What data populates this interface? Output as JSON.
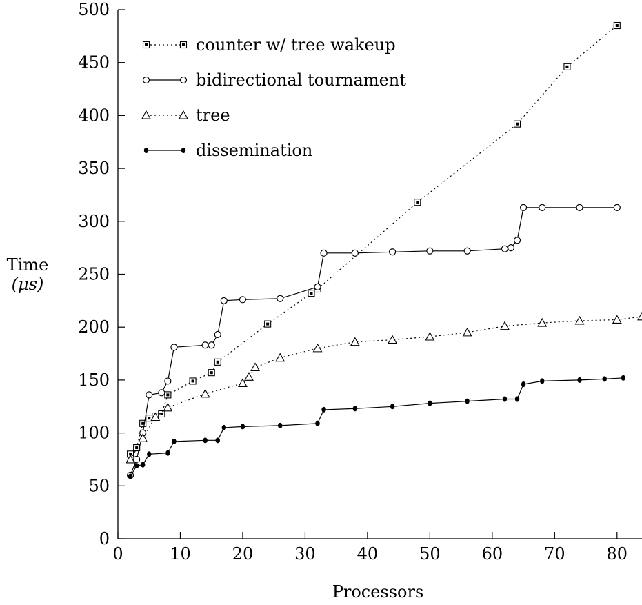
{
  "chart_data": {
    "type": "line",
    "title": "",
    "xlabel": "Processors",
    "ylabel": [
      "Time",
      "(μs)"
    ],
    "xlim": [
      0,
      84
    ],
    "ylim": [
      0,
      500
    ],
    "xticks": [
      0,
      10,
      20,
      30,
      40,
      50,
      60,
      70,
      80
    ],
    "yticks": [
      0,
      50,
      100,
      150,
      200,
      250,
      300,
      350,
      400,
      450,
      500
    ],
    "grid": false,
    "legend_position": "top-left",
    "series": [
      {
        "name": "counter w/ tree wakeup",
        "marker": "square",
        "line": "dotted",
        "points": [
          [
            2,
            80
          ],
          [
            3,
            86
          ],
          [
            4,
            109
          ],
          [
            5,
            114
          ],
          [
            6,
            116
          ],
          [
            7,
            118
          ],
          [
            8,
            136
          ],
          [
            12,
            149
          ],
          [
            15,
            157
          ],
          [
            16,
            167
          ],
          [
            24,
            203
          ],
          [
            31,
            232
          ],
          [
            32,
            236
          ],
          [
            48,
            318
          ],
          [
            64,
            392
          ],
          [
            72,
            446
          ],
          [
            80,
            485
          ]
        ]
      },
      {
        "name": "bidirectional tournament",
        "marker": "circle",
        "line": "solid",
        "points": [
          [
            2,
            60
          ],
          [
            3,
            75
          ],
          [
            4,
            100
          ],
          [
            5,
            136
          ],
          [
            7,
            138
          ],
          [
            8,
            149
          ],
          [
            9,
            181
          ],
          [
            14,
            183
          ],
          [
            15,
            183
          ],
          [
            16,
            193
          ],
          [
            17,
            225
          ],
          [
            20,
            226
          ],
          [
            26,
            227
          ],
          [
            32,
            238
          ],
          [
            33,
            270
          ],
          [
            38,
            270
          ],
          [
            44,
            271
          ],
          [
            50,
            272
          ],
          [
            56,
            272
          ],
          [
            62,
            274
          ],
          [
            63,
            275
          ],
          [
            64,
            282
          ],
          [
            65,
            313
          ],
          [
            68,
            313
          ],
          [
            74,
            313
          ],
          [
            80,
            313
          ]
        ]
      },
      {
        "name": "tree",
        "marker": "triangle",
        "line": "dotted",
        "points": [
          [
            2,
            75
          ],
          [
            4,
            95
          ],
          [
            6,
            115
          ],
          [
            8,
            124
          ],
          [
            14,
            137
          ],
          [
            20,
            147
          ],
          [
            21,
            153
          ],
          [
            22,
            162
          ],
          [
            26,
            171
          ],
          [
            32,
            180
          ],
          [
            38,
            186
          ],
          [
            44,
            188
          ],
          [
            50,
            191
          ],
          [
            56,
            195
          ],
          [
            62,
            201
          ],
          [
            68,
            204
          ],
          [
            74,
            206
          ],
          [
            80,
            207
          ],
          [
            84,
            210
          ]
        ]
      },
      {
        "name": "dissemination",
        "marker": "filled-circle",
        "line": "solid",
        "points": [
          [
            2,
            59
          ],
          [
            3,
            69
          ],
          [
            4,
            70
          ],
          [
            5,
            80
          ],
          [
            8,
            81
          ],
          [
            9,
            92
          ],
          [
            14,
            93
          ],
          [
            16,
            93
          ],
          [
            17,
            105
          ],
          [
            20,
            106
          ],
          [
            26,
            107
          ],
          [
            32,
            109
          ],
          [
            33,
            122
          ],
          [
            38,
            123
          ],
          [
            44,
            125
          ],
          [
            50,
            128
          ],
          [
            56,
            130
          ],
          [
            62,
            132
          ],
          [
            64,
            132
          ],
          [
            65,
            146
          ],
          [
            68,
            149
          ],
          [
            74,
            150
          ],
          [
            78,
            151
          ],
          [
            81,
            152
          ]
        ]
      }
    ]
  }
}
